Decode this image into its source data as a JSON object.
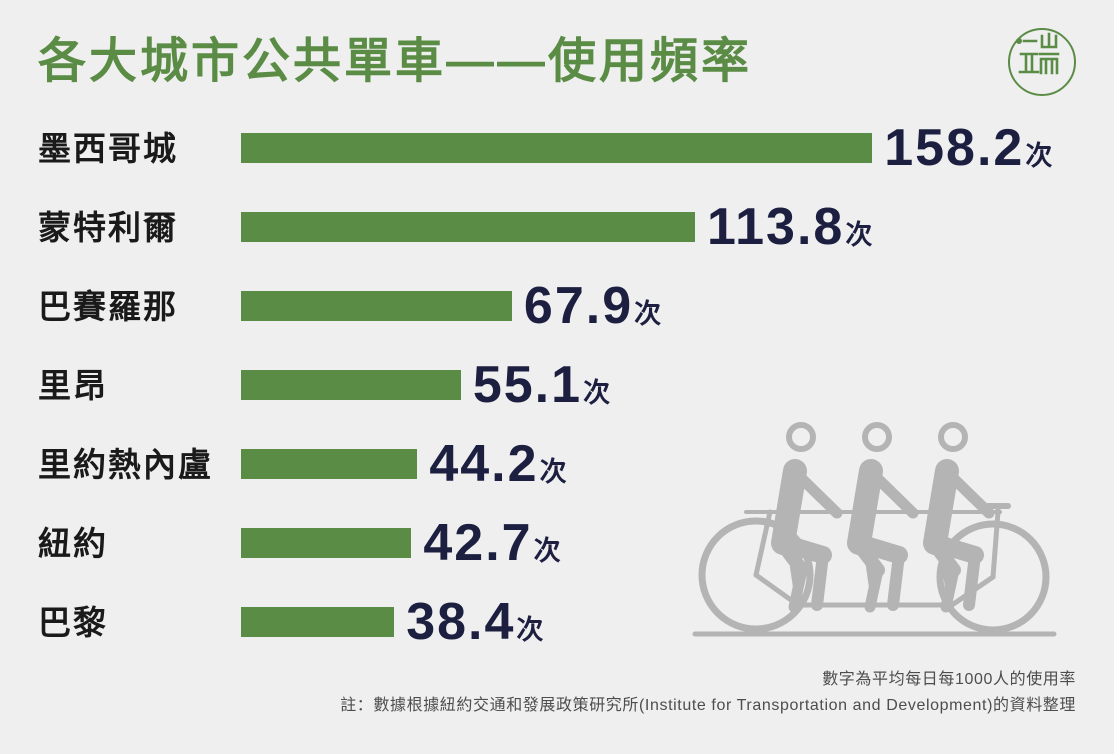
{
  "chart_data": {
    "type": "bar",
    "orientation": "horizontal",
    "title": "各大城市公共單車——使用頻率",
    "categories": [
      "墨西哥城",
      "蒙特利爾",
      "巴賽羅那",
      "里昂",
      "里約熱內盧",
      "紐約",
      "巴黎"
    ],
    "values": [
      158.2,
      113.8,
      67.9,
      55.1,
      44.2,
      42.7,
      38.4
    ],
    "value_unit": "次",
    "show_axes": false,
    "grid": false,
    "show_legend": false,
    "colors": {
      "bar": "#5b8c46",
      "title": "#5b8c46",
      "category_label": "#1a1a1a",
      "value_label": "#1c1f40"
    }
  },
  "notes": {
    "unit_note": "數字為平均每日每1000人的使用率",
    "source_note": "註：數據根據紐約交通和發展政策研究所(Institute for Transportation and Development)的資料整理"
  },
  "logo": {
    "icon": "brand-logo-icon",
    "color": "#5b8c46"
  },
  "illustration": {
    "icon": "tandem-bicycle-icon",
    "color": "#b4b4b4"
  },
  "background": "#efefef"
}
